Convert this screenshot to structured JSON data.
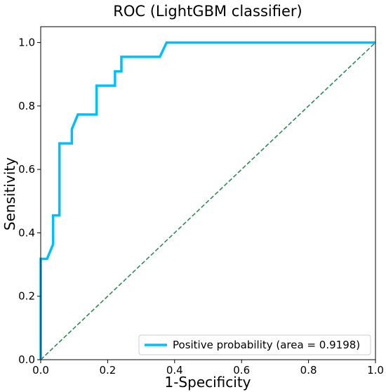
{
  "chart_data": {
    "type": "line",
    "title": "ROC (LightGBM classifier)",
    "xlabel": "1-Specificity",
    "ylabel": "Sensitivity",
    "xlim": [
      0.0,
      1.0
    ],
    "ylim": [
      0.0,
      1.05
    ],
    "x_ticks": [
      0.0,
      0.2,
      0.4,
      0.6,
      0.8,
      1.0
    ],
    "y_ticks": [
      0.0,
      0.2,
      0.4,
      0.6,
      0.8,
      1.0
    ],
    "x_tick_labels": [
      "0.0",
      "0.2",
      "0.4",
      "0.6",
      "0.8",
      "1.0"
    ],
    "y_tick_labels": [
      "0.0",
      "0.2",
      "0.4",
      "0.6",
      "0.8",
      "1.0"
    ],
    "grid": false,
    "legend_position": "lower-right",
    "series": [
      {
        "name": "Positive probability (area = 0.9198)",
        "color": "#00bfff",
        "style": "solid",
        "x": [
          0.0,
          0.0,
          0.019,
          0.037,
          0.037,
          0.056,
          0.056,
          0.093,
          0.093,
          0.111,
          0.167,
          0.167,
          0.222,
          0.222,
          0.241,
          0.241,
          0.356,
          0.376,
          1.0
        ],
        "y": [
          0.0,
          0.318,
          0.318,
          0.364,
          0.455,
          0.455,
          0.682,
          0.682,
          0.727,
          0.773,
          0.773,
          0.864,
          0.864,
          0.909,
          0.909,
          0.955,
          0.955,
          1.0,
          1.0
        ]
      },
      {
        "name": "",
        "color": "#2e8b57",
        "style": "dashed",
        "x": [
          0.0,
          1.0
        ],
        "y": [
          0.0,
          1.0
        ]
      }
    ]
  }
}
